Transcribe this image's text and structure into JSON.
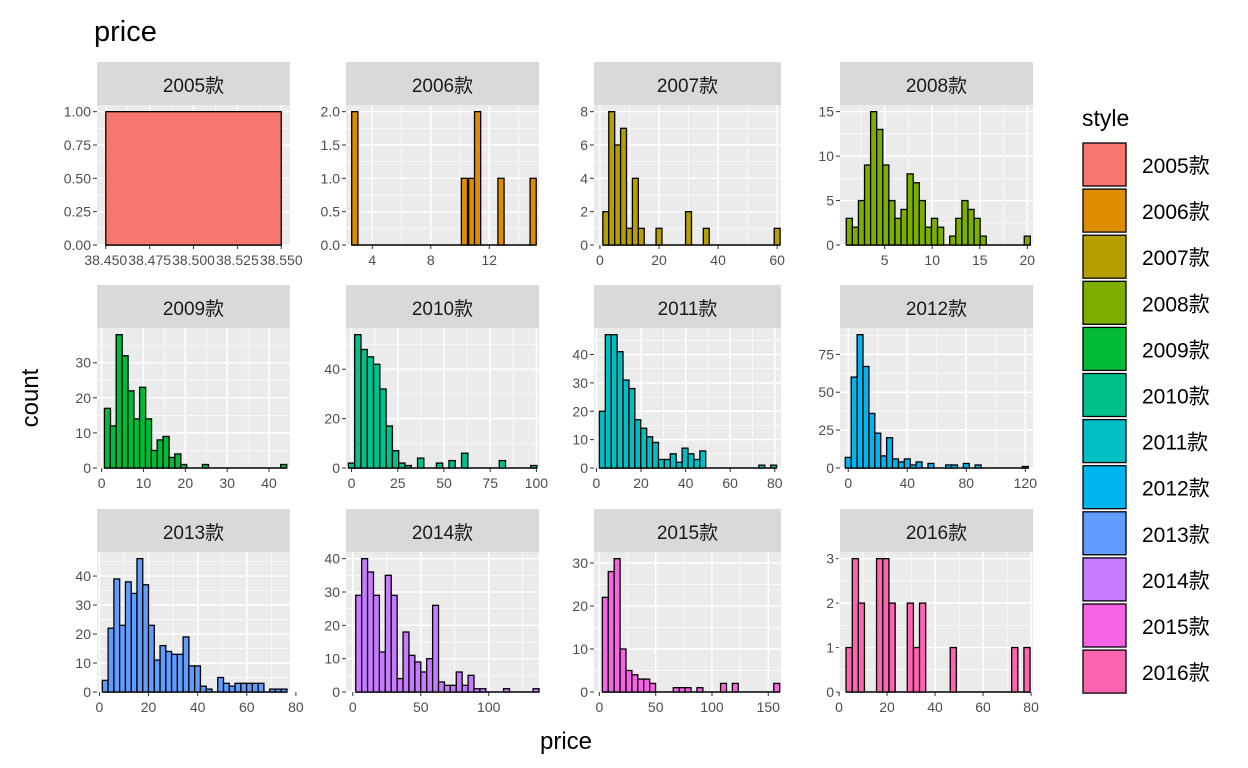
{
  "chart_data": {
    "type": "bar",
    "title": "price",
    "xlabel": "price",
    "ylabel": "count",
    "legend": {
      "title": "style",
      "placement": "right",
      "entries": [
        {
          "label": "2005款",
          "color": "#F8766D"
        },
        {
          "label": "2006款",
          "color": "#DE8C00"
        },
        {
          "label": "2007款",
          "color": "#B79F00"
        },
        {
          "label": "2008款",
          "color": "#7CAE00"
        },
        {
          "label": "2009款",
          "color": "#00BA38"
        },
        {
          "label": "2010款",
          "color": "#00C08B"
        },
        {
          "label": "2011款",
          "color": "#00BFC4"
        },
        {
          "label": "2012款",
          "color": "#00B4F0"
        },
        {
          "label": "2013款",
          "color": "#619CFF"
        },
        {
          "label": "2014款",
          "color": "#C77CFF"
        },
        {
          "label": "2015款",
          "color": "#F564E3"
        },
        {
          "label": "2016款",
          "color": "#FF64B0"
        }
      ]
    },
    "facets": [
      {
        "label": "2005款",
        "color": "#F8766D",
        "xlim": [
          38.445,
          38.555
        ],
        "xticks": [
          38.45,
          38.475,
          38.5,
          38.525,
          38.55
        ],
        "xtick_labels": [
          "38.450",
          "38.475",
          "38.500",
          "38.525",
          "38.550"
        ],
        "ylim": [
          0,
          1.05
        ],
        "yticks": [
          0,
          0.25,
          0.5,
          0.75,
          1
        ],
        "ytick_labels": [
          "0.00",
          "0.25",
          "0.50",
          "0.75",
          "1.00"
        ],
        "binwidth": 0.1,
        "x": [
          38.5
        ],
        "values": [
          1
        ]
      },
      {
        "label": "2006款",
        "color": "#DE8C00",
        "xlim": [
          2.2,
          15.4
        ],
        "xticks": [
          4,
          8,
          12
        ],
        "xtick_labels": [
          "4",
          "8",
          "12"
        ],
        "ylim": [
          0,
          2.1
        ],
        "yticks": [
          0,
          0.5,
          1,
          1.5,
          2
        ],
        "ytick_labels": [
          "0.0",
          "0.5",
          "1.0",
          "1.5",
          "2.0"
        ],
        "binwidth": 0.42,
        "x": [
          2.8,
          10.3,
          10.8,
          11.2,
          12.8,
          15.0
        ],
        "values": [
          2,
          1,
          1,
          2,
          1,
          1
        ]
      },
      {
        "label": "2007款",
        "color": "#B79F00",
        "xlim": [
          -2.0,
          61.3
        ],
        "xticks": [
          0,
          20,
          40,
          60
        ],
        "xtick_labels": [
          "0",
          "20",
          "40",
          "60"
        ],
        "ylim": [
          0,
          8.4
        ],
        "yticks": [
          0,
          2,
          4,
          6,
          8
        ],
        "ytick_labels": [
          "0",
          "2",
          "4",
          "6",
          "8"
        ],
        "binwidth": 2.0,
        "x": [
          2,
          4,
          6,
          8,
          10,
          12,
          14,
          20,
          30,
          36,
          60
        ],
        "values": [
          2,
          8,
          6,
          7,
          1,
          4,
          1,
          1,
          2,
          1,
          1
        ]
      },
      {
        "label": "2008款",
        "color": "#7CAE00",
        "xlim": [
          0.3,
          20.6
        ],
        "xticks": [
          5,
          10,
          15,
          20
        ],
        "xtick_labels": [
          "5",
          "10",
          "15",
          "20"
        ],
        "ylim": [
          0,
          15.75
        ],
        "yticks": [
          0,
          5,
          10,
          15
        ],
        "ytick_labels": [
          "0",
          "5",
          "10",
          "15"
        ],
        "binwidth": 0.64,
        "x": [
          1.28,
          1.92,
          2.56,
          3.2,
          3.84,
          4.48,
          5.12,
          5.76,
          6.4,
          7.04,
          7.68,
          8.32,
          8.96,
          9.6,
          10.24,
          10.88,
          12.16,
          12.8,
          13.44,
          14.08,
          14.72,
          15.36,
          20.0
        ],
        "values": [
          3,
          2,
          5,
          9,
          15,
          13,
          9,
          5,
          3,
          4,
          8,
          7,
          5,
          2,
          3,
          2,
          1,
          3,
          5,
          4,
          3,
          1,
          1
        ]
      },
      {
        "label": "2009款",
        "color": "#00BA38",
        "xlim": [
          -1.1,
          45.0
        ],
        "xticks": [
          0,
          10,
          20,
          30,
          40
        ],
        "xtick_labels": [
          "0",
          "10",
          "20",
          "30",
          "40"
        ],
        "ylim": [
          0,
          39.9
        ],
        "yticks": [
          0,
          10,
          20,
          30
        ],
        "ytick_labels": [
          "0",
          "10",
          "20",
          "30"
        ],
        "binwidth": 1.45,
        "x": [
          1.4,
          2.8,
          4.2,
          5.6,
          7.0,
          8.4,
          9.8,
          11.2,
          12.6,
          14.0,
          15.4,
          16.8,
          18.2,
          19.6,
          24.8,
          43.5
        ],
        "values": [
          17,
          12,
          38,
          32,
          22,
          14,
          23,
          14,
          5,
          8,
          9,
          3,
          4,
          1,
          1,
          1
        ]
      },
      {
        "label": "2010款",
        "color": "#00C08B",
        "xlim": [
          -3.0,
          101.4
        ],
        "xticks": [
          0,
          25,
          50,
          75,
          100
        ],
        "xtick_labels": [
          "0",
          "25",
          "50",
          "75",
          "100"
        ],
        "ylim": [
          0,
          56.7
        ],
        "yticks": [
          0,
          20,
          40
        ],
        "ytick_labels": [
          "0",
          "20",
          "40"
        ],
        "binwidth": 3.4,
        "x": [
          0,
          3.4,
          6.8,
          10.2,
          13.6,
          17.0,
          20.4,
          23.8,
          27.2,
          30.6,
          37.4,
          47.6,
          54.4,
          61.2,
          81.6,
          98.6
        ],
        "values": [
          2,
          54,
          48,
          45,
          42,
          32,
          17,
          7,
          2,
          1,
          4,
          2,
          3,
          6,
          3,
          1
        ]
      },
      {
        "label": "2011款",
        "color": "#00BFC4",
        "xlim": [
          -1.1,
          82.8
        ],
        "xticks": [
          0,
          20,
          40,
          60,
          80
        ],
        "xtick_labels": [
          "0",
          "20",
          "40",
          "60",
          "80"
        ],
        "ylim": [
          0,
          49.35
        ],
        "yticks": [
          0,
          10,
          20,
          30,
          40
        ],
        "ytick_labels": [
          "0",
          "10",
          "20",
          "30",
          "40"
        ],
        "binwidth": 2.65,
        "x": [
          2.65,
          5.3,
          7.95,
          10.6,
          13.25,
          15.9,
          18.55,
          21.2,
          23.85,
          26.5,
          29.15,
          31.8,
          34.45,
          37.1,
          39.75,
          42.4,
          45.05,
          47.7,
          74.2,
          79.5
        ],
        "values": [
          20,
          47,
          47,
          41,
          31,
          28,
          17,
          14,
          11,
          9,
          3,
          3,
          5,
          2,
          7,
          5,
          3,
          6,
          1,
          1
        ]
      },
      {
        "label": "2012款",
        "color": "#00B4F0",
        "xlim": [
          -5.6,
          125.2
        ],
        "xticks": [
          0,
          40,
          80,
          120
        ],
        "xtick_labels": [
          "0",
          "40",
          "80",
          "120"
        ],
        "ylim": [
          0,
          92.4
        ],
        "yticks": [
          0,
          25,
          50,
          75
        ],
        "ytick_labels": [
          "0",
          "25",
          "50",
          "75"
        ],
        "binwidth": 4.0,
        "x": [
          0,
          4,
          8,
          12,
          16,
          20,
          24,
          28,
          32,
          36,
          40,
          44,
          48,
          56,
          68,
          72,
          80,
          88,
          120
        ],
        "values": [
          7,
          60,
          88,
          67,
          36,
          23,
          8,
          20,
          6,
          4,
          6,
          2,
          4,
          3,
          2,
          2,
          3,
          2,
          1
        ]
      },
      {
        "label": "2013款",
        "color": "#619CFF",
        "xlim": [
          -1.0,
          77.6
        ],
        "xticks": [
          0,
          20,
          40,
          60,
          80
        ],
        "xtick_labels": [
          "0",
          "20",
          "40",
          "60",
          "80"
        ],
        "ylim": [
          0,
          48.3
        ],
        "yticks": [
          0,
          10,
          20,
          30,
          40
        ],
        "ytick_labels": [
          "0",
          "10",
          "20",
          "30",
          "40"
        ],
        "binwidth": 2.35,
        "x": [
          2.35,
          4.7,
          7.05,
          9.4,
          11.75,
          14.1,
          16.45,
          18.8,
          21.15,
          23.5,
          25.85,
          28.2,
          30.55,
          32.9,
          35.25,
          37.6,
          39.95,
          42.3,
          44.65,
          49.35,
          51.7,
          54.05,
          56.4,
          58.75,
          61.1,
          63.45,
          65.8,
          70.5,
          72.85,
          75.2
        ],
        "values": [
          4,
          22,
          39,
          23,
          38,
          34,
          46,
          37,
          23,
          11,
          16,
          14,
          13,
          13,
          19,
          9,
          9,
          2,
          1,
          5,
          3,
          2,
          3,
          3,
          3,
          3,
          3,
          1,
          1,
          1
        ]
      },
      {
        "label": "2014款",
        "color": "#C77CFF",
        "xlim": [
          -5.0,
          137.0
        ],
        "xticks": [
          0,
          50,
          100
        ],
        "xtick_labels": [
          "0",
          "50",
          "100"
        ],
        "ylim": [
          0,
          42
        ],
        "yticks": [
          0,
          10,
          20,
          30,
          40
        ],
        "ytick_labels": [
          "0",
          "10",
          "20",
          "30",
          "40"
        ],
        "binwidth": 4.35,
        "x": [
          4.35,
          8.7,
          13.05,
          17.4,
          21.75,
          26.1,
          30.45,
          34.8,
          39.15,
          43.5,
          47.85,
          52.2,
          56.55,
          60.9,
          65.25,
          69.6,
          73.95,
          78.3,
          82.65,
          87.0,
          91.35,
          95.7,
          113.1,
          134.85
        ],
        "values": [
          29,
          40,
          36,
          29,
          12,
          35,
          29,
          4,
          18,
          11,
          9,
          6,
          10,
          26,
          3,
          2,
          2,
          6,
          2,
          5,
          1,
          1,
          1,
          1
        ]
      },
      {
        "label": "2015款",
        "color": "#F564E3",
        "xlim": [
          -4.8,
          161.3
        ],
        "xticks": [
          0,
          50,
          100,
          150
        ],
        "xtick_labels": [
          "0",
          "50",
          "100",
          "150"
        ],
        "ylim": [
          0,
          32.55
        ],
        "yticks": [
          0,
          10,
          20,
          30
        ],
        "ytick_labels": [
          "0",
          "10",
          "20",
          "30"
        ],
        "binwidth": 5.25,
        "x": [
          5.25,
          10.5,
          15.75,
          21.0,
          26.25,
          31.5,
          36.75,
          42.0,
          47.25,
          68.25,
          73.5,
          78.75,
          89.25,
          110.25,
          120.75,
          157.5
        ],
        "values": [
          22,
          28,
          31,
          10,
          5,
          4,
          3,
          3,
          2,
          1,
          1,
          1,
          1,
          2,
          2,
          2
        ]
      },
      {
        "label": "2016款",
        "color": "#FF64B0",
        "xlim": [
          0.4,
          80.8
        ],
        "xticks": [
          0,
          20,
          40,
          60,
          80
        ],
        "xtick_labels": [
          "0",
          "20",
          "40",
          "60",
          "80"
        ],
        "ylim": [
          0,
          3.15
        ],
        "yticks": [
          0,
          1,
          2,
          3
        ],
        "ytick_labels": [
          "0",
          "1",
          "2",
          "3"
        ],
        "binwidth": 2.56,
        "x": [
          4.2,
          6.8,
          9.3,
          16.9,
          19.5,
          22.1,
          29.7,
          32.3,
          34.8,
          47.6,
          73.2,
          78.3
        ],
        "values": [
          1,
          3,
          2,
          3,
          3,
          2,
          2,
          1,
          2,
          1,
          1,
          1
        ]
      }
    ]
  }
}
